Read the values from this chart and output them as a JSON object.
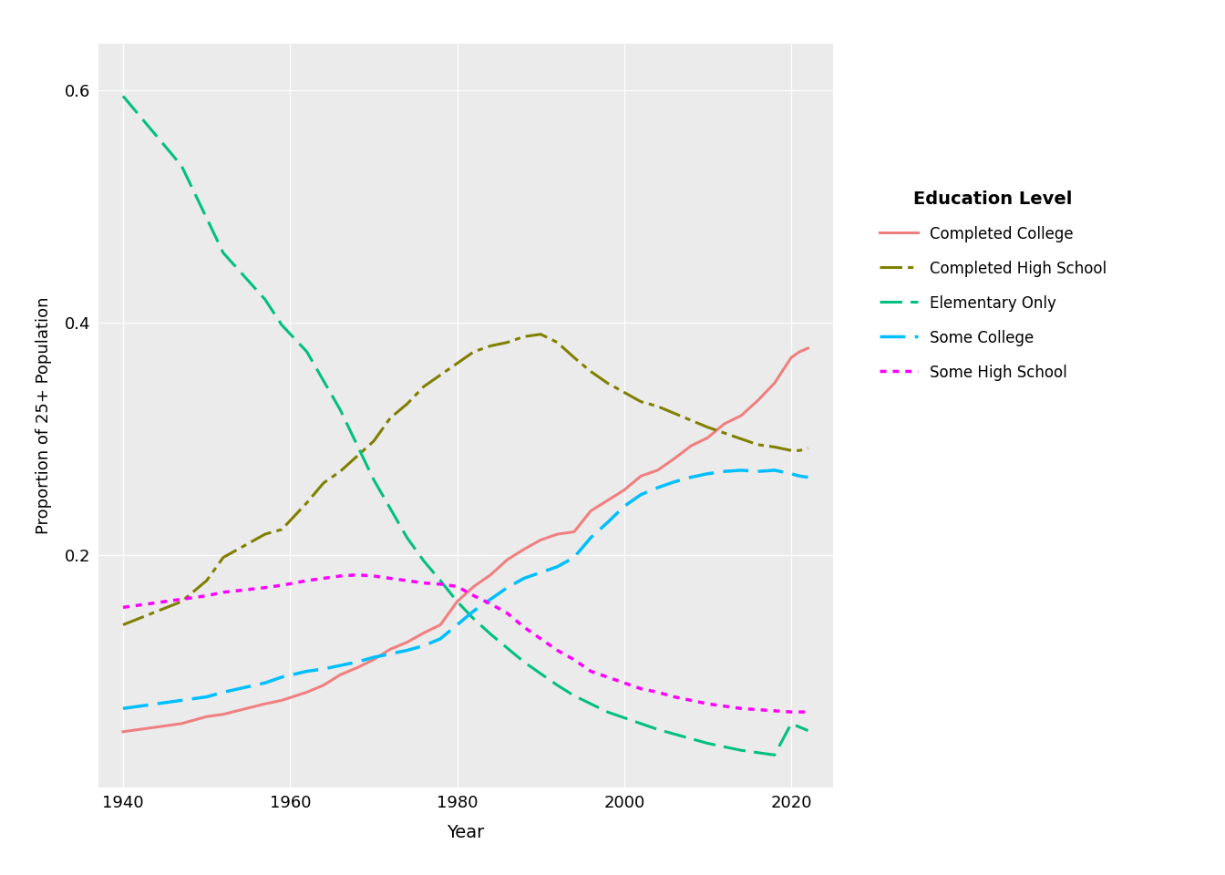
{
  "xlabel": "Year",
  "ylabel": "Proportion of 25+ Population",
  "bg_color": "#EBEBEB",
  "legend_title": "Education Level",
  "xlim": [
    1937,
    2025
  ],
  "ylim": [
    0.0,
    0.64
  ],
  "yticks": [
    0.2,
    0.4,
    0.6
  ],
  "xticks": [
    1940,
    1960,
    1980,
    2000,
    2020
  ],
  "series": {
    "Completed College": {
      "color": "#F08080",
      "linestyle": "solid",
      "linewidth": 2.2,
      "years": [
        1940,
        1947,
        1950,
        1952,
        1957,
        1959,
        1962,
        1964,
        1966,
        1968,
        1970,
        1972,
        1974,
        1976,
        1978,
        1980,
        1982,
        1984,
        1986,
        1988,
        1990,
        1992,
        1994,
        1996,
        1998,
        2000,
        2002,
        2004,
        2006,
        2008,
        2010,
        2012,
        2014,
        2016,
        2018,
        2020,
        2021,
        2022
      ],
      "values": [
        0.048,
        0.055,
        0.061,
        0.063,
        0.072,
        0.075,
        0.082,
        0.088,
        0.097,
        0.103,
        0.11,
        0.119,
        0.125,
        0.133,
        0.14,
        0.16,
        0.173,
        0.183,
        0.196,
        0.205,
        0.213,
        0.218,
        0.22,
        0.238,
        0.247,
        0.256,
        0.268,
        0.273,
        0.283,
        0.294,
        0.301,
        0.313,
        0.32,
        0.333,
        0.348,
        0.37,
        0.375,
        0.378
      ]
    },
    "Completed High School": {
      "color": "#808000",
      "linewidth": 2.2,
      "years": [
        1940,
        1947,
        1950,
        1952,
        1957,
        1959,
        1962,
        1964,
        1966,
        1968,
        1970,
        1972,
        1974,
        1976,
        1978,
        1980,
        1982,
        1984,
        1986,
        1988,
        1990,
        1992,
        1994,
        1996,
        1998,
        2000,
        2002,
        2004,
        2006,
        2008,
        2010,
        2012,
        2014,
        2016,
        2018,
        2020,
        2021,
        2022
      ],
      "values": [
        0.14,
        0.16,
        0.178,
        0.198,
        0.218,
        0.222,
        0.245,
        0.262,
        0.272,
        0.285,
        0.298,
        0.318,
        0.33,
        0.345,
        0.355,
        0.365,
        0.375,
        0.38,
        0.383,
        0.388,
        0.39,
        0.383,
        0.37,
        0.358,
        0.348,
        0.34,
        0.332,
        0.328,
        0.322,
        0.316,
        0.31,
        0.305,
        0.3,
        0.295,
        0.293,
        0.29,
        0.29,
        0.292
      ]
    },
    "Elementary Only": {
      "color": "#00C080",
      "linewidth": 2.2,
      "years": [
        1940,
        1947,
        1950,
        1952,
        1957,
        1959,
        1962,
        1964,
        1966,
        1968,
        1970,
        1972,
        1974,
        1976,
        1978,
        1980,
        1982,
        1984,
        1986,
        1988,
        1990,
        1992,
        1994,
        1996,
        1998,
        2000,
        2002,
        2004,
        2006,
        2008,
        2010,
        2012,
        2014,
        2016,
        2018,
        2020,
        2021,
        2022
      ],
      "values": [
        0.595,
        0.535,
        0.49,
        0.46,
        0.42,
        0.398,
        0.375,
        0.35,
        0.325,
        0.295,
        0.265,
        0.24,
        0.215,
        0.195,
        0.178,
        0.16,
        0.145,
        0.132,
        0.12,
        0.108,
        0.098,
        0.088,
        0.079,
        0.072,
        0.065,
        0.06,
        0.055,
        0.05,
        0.046,
        0.042,
        0.038,
        0.035,
        0.032,
        0.03,
        0.028,
        0.055,
        0.052,
        0.049
      ]
    },
    "Some College": {
      "color": "#00BFFF",
      "linewidth": 2.5,
      "years": [
        1940,
        1947,
        1950,
        1952,
        1957,
        1959,
        1962,
        1964,
        1966,
        1968,
        1970,
        1972,
        1974,
        1976,
        1978,
        1980,
        1982,
        1984,
        1986,
        1988,
        1990,
        1992,
        1994,
        1996,
        1998,
        2000,
        2002,
        2004,
        2006,
        2008,
        2010,
        2012,
        2014,
        2016,
        2018,
        2020,
        2021,
        2022
      ],
      "values": [
        0.068,
        0.075,
        0.078,
        0.082,
        0.09,
        0.095,
        0.1,
        0.102,
        0.105,
        0.108,
        0.112,
        0.115,
        0.118,
        0.122,
        0.128,
        0.14,
        0.152,
        0.162,
        0.172,
        0.18,
        0.185,
        0.19,
        0.198,
        0.215,
        0.228,
        0.242,
        0.252,
        0.258,
        0.263,
        0.267,
        0.27,
        0.272,
        0.273,
        0.272,
        0.273,
        0.27,
        0.268,
        0.267
      ]
    },
    "Some High School": {
      "color": "#FF00FF",
      "linewidth": 2.5,
      "years": [
        1940,
        1947,
        1950,
        1952,
        1957,
        1959,
        1962,
        1964,
        1966,
        1968,
        1970,
        1972,
        1974,
        1976,
        1978,
        1980,
        1982,
        1984,
        1986,
        1988,
        1990,
        1992,
        1994,
        1996,
        1998,
        2000,
        2002,
        2004,
        2006,
        2008,
        2010,
        2012,
        2014,
        2016,
        2018,
        2020,
        2021,
        2022
      ],
      "values": [
        0.155,
        0.162,
        0.165,
        0.168,
        0.172,
        0.174,
        0.178,
        0.18,
        0.182,
        0.183,
        0.182,
        0.18,
        0.178,
        0.176,
        0.175,
        0.173,
        0.165,
        0.158,
        0.15,
        0.138,
        0.128,
        0.118,
        0.11,
        0.1,
        0.095,
        0.09,
        0.085,
        0.082,
        0.078,
        0.075,
        0.072,
        0.07,
        0.068,
        0.067,
        0.066,
        0.065,
        0.065,
        0.065
      ]
    }
  }
}
